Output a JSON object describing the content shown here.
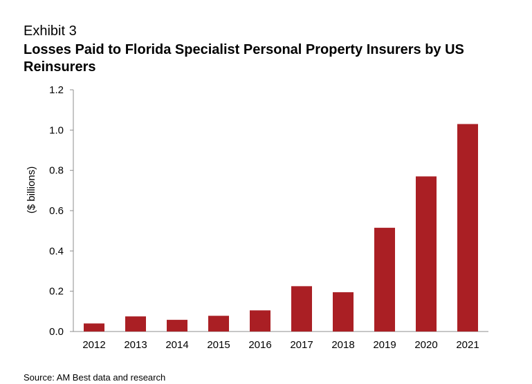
{
  "header": {
    "exhibit": "Exhibit 3",
    "title": "Losses Paid to Florida Specialist Personal Property Insurers by US Reinsurers"
  },
  "footer": {
    "source": "Source: AM Best data and research"
  },
  "colors": {
    "bar": "#aa1f24",
    "axis": "#8c8c8c"
  },
  "chart_data": {
    "type": "bar",
    "title": "Losses Paid to Florida Specialist Personal Property Insurers by US Reinsurers",
    "xlabel": "",
    "ylabel": "($ billions)",
    "categories": [
      "2012",
      "2013",
      "2014",
      "2015",
      "2016",
      "2017",
      "2018",
      "2019",
      "2020",
      "2021"
    ],
    "values": [
      0.04,
      0.075,
      0.058,
      0.078,
      0.105,
      0.225,
      0.195,
      0.515,
      0.77,
      1.03
    ],
    "ylim": [
      0,
      1.2
    ],
    "yticks": [
      "0.0",
      "0.2",
      "0.4",
      "0.6",
      "0.8",
      "1.0",
      "1.2"
    ],
    "grid": false,
    "legend": "none"
  }
}
